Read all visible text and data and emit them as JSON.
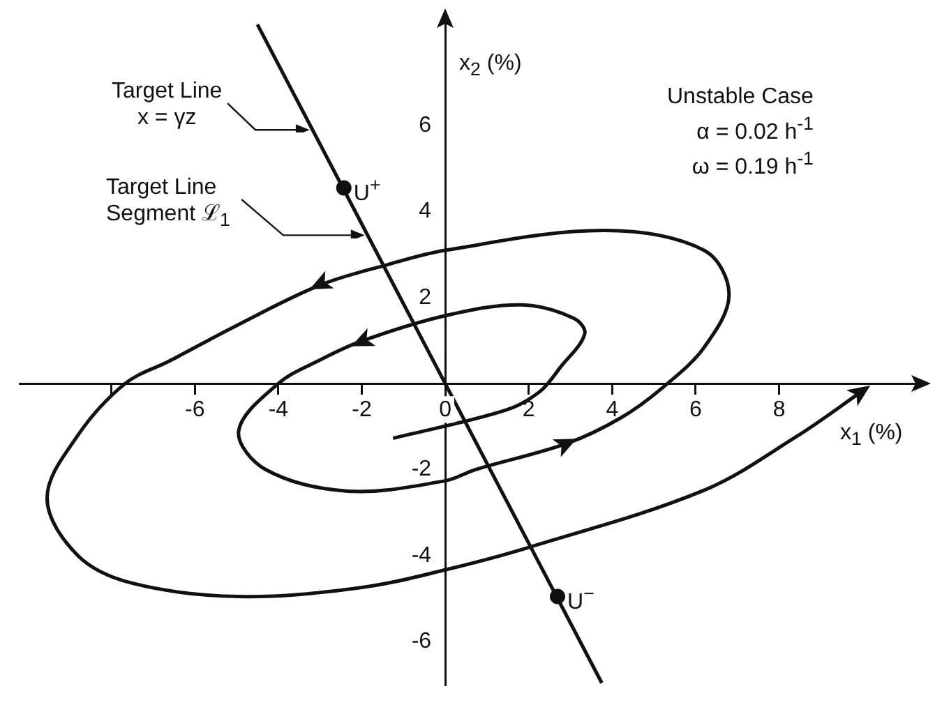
{
  "chart_data": {
    "type": "line",
    "xlabel": "x$_{1}$ (%)",
    "ylabel": "x$_{2}$ (%)",
    "xlim": [
      -10.2,
      11.3
    ],
    "ylim": [
      -7,
      8.4
    ],
    "xticks": [
      {
        "value": -8,
        "label": null
      },
      -6,
      -4,
      -2,
      0,
      2,
      4,
      6,
      8
    ],
    "yticks": [
      -6,
      -4,
      -2,
      2,
      4,
      6
    ],
    "grid": false,
    "legend": false,
    "line_style": "solid",
    "annotations": [
      {
        "text": "Target Line\nx = γz",
        "x": -3.18,
        "y": 5.9
      },
      {
        "text": "Target Line\nSegment ℒ$_{1}$",
        "x": -1.86,
        "y": 3.45
      },
      "Unstable Case\nα = 0.02 h$^{-1}$\nω = 0.19 h$^{-1}$",
      {
        "text": "U$^{+}$",
        "x": -2.43,
        "y": 4.55
      },
      {
        "text": "U$^{−}$",
        "x": 2.69,
        "y": -4.95
      }
    ],
    "series": [
      {
        "color": "#111111",
        "marker": "none",
        "x": [
          -1.25,
          1.44,
          2.26,
          2.75,
          3.34,
          3.08,
          1.84,
          0,
          -2,
          -3,
          -4,
          -4.95,
          -4.3,
          -2.33,
          0,
          0.72,
          2.92,
          4.2,
          5.2,
          6.2,
          6.8,
          6.2,
          3.8,
          0,
          -1.44,
          -3.0,
          -5,
          -6.6,
          -7.67,
          -8.8,
          -9.54,
          -8.8,
          -7.5,
          -4.95,
          -2,
          0,
          2.03,
          6.2,
          8.4,
          9.97
        ],
        "values": [
          -1.27,
          -0.62,
          -0.19,
          0.37,
          1.15,
          1.52,
          1.83,
          1.58,
          0.99,
          0.55,
          0,
          -1.1,
          -2.0,
          -2.5,
          -2.26,
          -2.0,
          -1.39,
          -0.8,
          -0.1,
          0.84,
          2.07,
          3.1,
          3.56,
          3.1,
          2.75,
          2.29,
          1.35,
          0.53,
          0,
          -1.2,
          -2.66,
          -4.0,
          -4.64,
          -4.95,
          -4.74,
          -4.33,
          -3.8,
          -2.48,
          -1.24,
          -0.19
        ]
      },
      {
        "color": "#111111",
        "marker": "none",
        "x": [
          -4.5,
          3.75
        ],
        "values": [
          8.35,
          -6.96
        ]
      },
      {
        "type": "scatter",
        "color": "#111111",
        "marker": "circle",
        "x": [
          -2.43,
          2.69
        ],
        "values": [
          4.55,
          -4.95
        ]
      }
    ]
  }
}
